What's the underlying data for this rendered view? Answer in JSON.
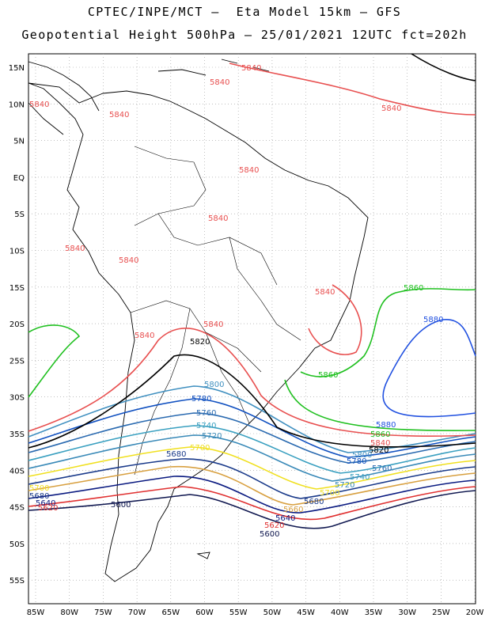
{
  "title_line1": "CPTEC/INPE/MCT –  Eta Model 15km – GFS",
  "title_line2": "Geopotential Height 500hPa – 25/01/2021 12UTC fct=202h",
  "lat_ticks": [
    "15N",
    "10N",
    "5N",
    "EQ",
    "5S",
    "10S",
    "15S",
    "20S",
    "25S",
    "30S",
    "35S",
    "40S",
    "45S",
    "50S",
    "55S"
  ],
  "lon_ticks": [
    "85W",
    "80W",
    "75W",
    "70W",
    "65W",
    "60W",
    "55W",
    "50W",
    "45W",
    "40W",
    "35W",
    "30W",
    "25W",
    "20W"
  ],
  "contours": [
    {
      "value": "5600",
      "color": "#101850"
    },
    {
      "value": "5620",
      "color": "#e03030"
    },
    {
      "value": "5640",
      "color": "#0a1a80"
    },
    {
      "value": "5660",
      "color": "#d8a040"
    },
    {
      "value": "5680",
      "color": "#1a3a8a"
    },
    {
      "value": "5700",
      "color": "#f0e020"
    },
    {
      "value": "5720",
      "color": "#3a8ab8"
    },
    {
      "value": "5740",
      "color": "#3aa0c0"
    },
    {
      "value": "5760",
      "color": "#2a6ab0"
    },
    {
      "value": "5780",
      "color": "#1050c0"
    },
    {
      "value": "5800",
      "color": "#4090c0"
    },
    {
      "value": "5820",
      "color": "#000000"
    },
    {
      "value": "5840",
      "color": "#e85050"
    },
    {
      "value": "5860",
      "color": "#20c020"
    },
    {
      "value": "5880",
      "color": "#2050e0"
    }
  ]
}
